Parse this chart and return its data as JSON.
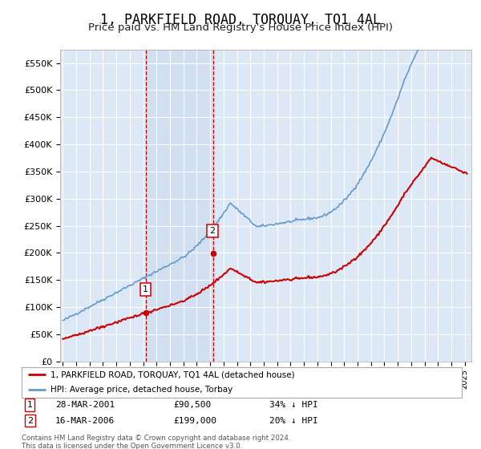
{
  "title": "1, PARKFIELD ROAD, TORQUAY, TQ1 4AL",
  "subtitle": "Price paid vs. HM Land Registry's House Price Index (HPI)",
  "title_fontsize": 12,
  "subtitle_fontsize": 9.5,
  "background_color": "#ffffff",
  "plot_bg_color": "#dce8f5",
  "grid_color": "#ffffff",
  "sale1_date": 2001.22,
  "sale1_price": 90500,
  "sale1_label": "1",
  "sale2_date": 2006.21,
  "sale2_price": 199000,
  "sale2_label": "2",
  "legend_line1": "1, PARKFIELD ROAD, TORQUAY, TQ1 4AL (detached house)",
  "legend_line2": "HPI: Average price, detached house, Torbay",
  "table_row1": [
    "1",
    "28-MAR-2001",
    "£90,500",
    "34% ↓ HPI"
  ],
  "table_row2": [
    "2",
    "16-MAR-2006",
    "£199,000",
    "20% ↓ HPI"
  ],
  "footer": "Contains HM Land Registry data © Crown copyright and database right 2024.\nThis data is licensed under the Open Government Licence v3.0.",
  "red_color": "#cc0000",
  "blue_color": "#6699cc",
  "dashed_line_color": "#cc0000",
  "shade_color": "#c8d8ee",
  "ylim_max": 575000,
  "xlim_start": 1994.8,
  "xlim_end": 2025.5
}
